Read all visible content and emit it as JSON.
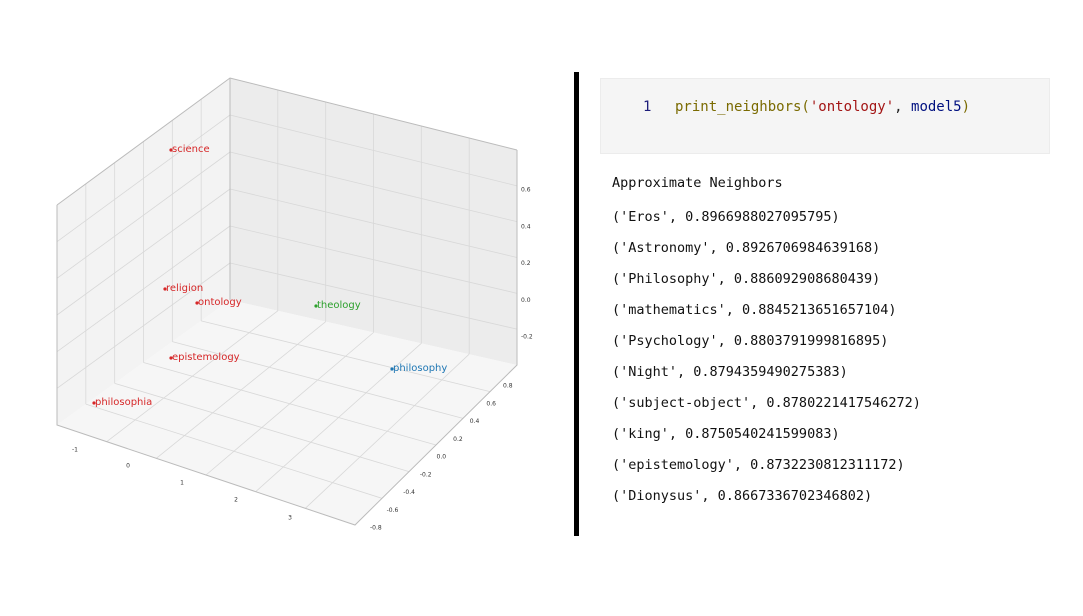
{
  "plot": {
    "labels": [
      {
        "text": "science",
        "color": "#d62728"
      },
      {
        "text": "religion",
        "color": "#d62728"
      },
      {
        "text": "ontology",
        "color": "#d62728"
      },
      {
        "text": "theology",
        "color": "#2ca02c"
      },
      {
        "text": "epistemology",
        "color": "#d62728"
      },
      {
        "text": "philosophy",
        "color": "#1f77b4"
      },
      {
        "text": "philosophia",
        "color": "#d62728"
      }
    ],
    "x_ticks": [
      "-1",
      "0",
      "1",
      "2",
      "3"
    ],
    "y_ticks": [
      "0.8",
      "0.6",
      "0.4",
      "0.2",
      "0.0",
      "-0.2",
      "-0.4",
      "-0.6",
      "-0.8"
    ],
    "z_ticks": [
      "0.6",
      "0.4",
      "0.2",
      "0.0",
      "-0.2"
    ]
  },
  "code": {
    "line_number": "1",
    "segments": [
      {
        "text": "print_neighbors(",
        "color": "#7a6a00"
      },
      {
        "text": "'ontology'",
        "color": "#a31515"
      },
      {
        "text": ", ",
        "color": "#222222"
      },
      {
        "text": "model5",
        "color": "#001080"
      },
      {
        "text": ")",
        "color": "#7a6a00"
      }
    ]
  },
  "output": {
    "title": "Approximate Neighbors",
    "lines": [
      "('Eros', 0.8966988027095795)",
      "('Astronomy', 0.8926706984639168)",
      "('Philosophy', 0.886092908680439)",
      "('mathematics', 0.8845213651657104)",
      "('Psychology', 0.8803791999816895)",
      "('Night', 0.8794359490275383)",
      "('subject-object', 0.8780221417546272)",
      "('king', 0.8750540241599083)",
      "('epistemology', 0.8732230812311172)",
      "('Dionysus', 0.8667336702346802)"
    ]
  }
}
